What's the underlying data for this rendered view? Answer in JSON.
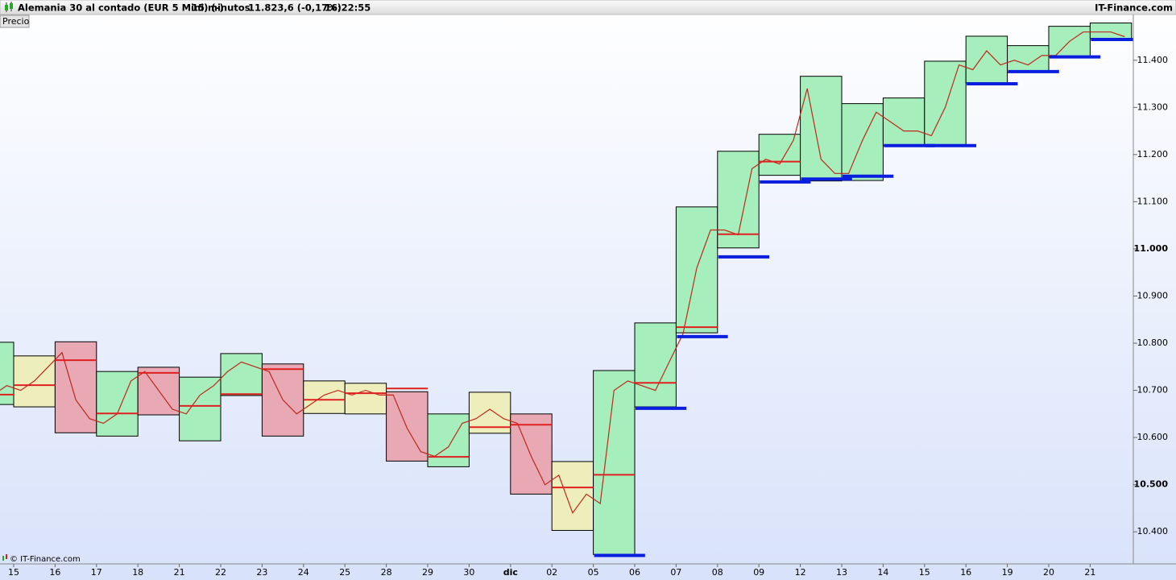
{
  "header": {
    "instrument": "Alemania 30 al contado (EUR 5 Mini) (-)",
    "interval": "15 minutos",
    "quote": "11.823,6 (-0,17%)",
    "time": "16:22:55",
    "brand": "IT-Finance.com"
  },
  "chart_data": {
    "type": "range",
    "y_label": "Precio",
    "credit": "© IT-Finance.com",
    "categories": [
      null,
      "15",
      "16",
      "17",
      "18",
      "21",
      "22",
      "23",
      "24",
      "25",
      "28",
      "29",
      "30",
      "dic",
      "02",
      "05",
      "06",
      "07",
      "08",
      "09",
      "12",
      "13",
      "14",
      "15",
      "16",
      "19",
      "20",
      "21"
    ],
    "high": [
      10802,
      10773,
      10803,
      10740,
      10749,
      10728,
      10778,
      10756,
      10720,
      10715,
      10697,
      10650,
      10696,
      10650,
      10549,
      10742,
      10843,
      11089,
      11207,
      11243,
      11366,
      11308,
      11320,
      11398,
      11451,
      11431,
      11472,
      11479
    ],
    "low": [
      10670,
      10665,
      10610,
      10603,
      10648,
      10593,
      10689,
      10603,
      10651,
      10650,
      10550,
      10538,
      10609,
      10480,
      10403,
      10352,
      10665,
      10822,
      11002,
      11156,
      11144,
      11145,
      11219,
      11219,
      11352,
      11374,
      11407,
      11446
    ],
    "level": [
      10691,
      10711,
      10764,
      10651,
      10737,
      10667,
      10692,
      10745,
      10680,
      10694,
      10704,
      10559,
      10622,
      10627,
      10494,
      10521,
      10716,
      10834,
      11031,
      11185,
      null,
      null,
      null,
      null,
      null,
      null,
      null,
      null
    ],
    "support": [
      null,
      null,
      null,
      null,
      null,
      null,
      null,
      null,
      null,
      null,
      null,
      null,
      null,
      null,
      null,
      10350,
      10662,
      10814,
      10983,
      11142,
      11148,
      11154,
      11219,
      11219,
      11350,
      11376,
      11407,
      11444
    ],
    "box_colors": [
      "#a6eebb",
      "#eeeebc",
      "#e8a8b4",
      "#a6eebb",
      "#e8a8b4",
      "#a6eebb",
      "#a6eebb",
      "#e8a8b4",
      "#eeeebc",
      "#eeeebc",
      "#e8a8b4",
      "#a6eebb",
      "#eeeebc",
      "#e8a8b4",
      "#eeeebc",
      "#a6eebb",
      "#a6eebb",
      "#a6eebb",
      "#a6eebb",
      "#a6eebb",
      "#a6eebb",
      "#a6eebb",
      "#a6eebb",
      "#a6eebb",
      "#a6eebb",
      "#a6eebb",
      "#a6eebb",
      "#a6eebb"
    ],
    "level_color": "#e02020",
    "support_color": "#0a1ee0",
    "price_color": "#c0281c",
    "price": [
      10700,
      10690,
      10710,
      10700,
      10720,
      10750,
      10780,
      10680,
      10640,
      10630,
      10650,
      10720,
      10740,
      10700,
      10660,
      10650,
      10690,
      10710,
      10740,
      10760,
      10750,
      10740,
      10680,
      10650,
      10670,
      10690,
      10700,
      10690,
      10700,
      10690,
      10690,
      10620,
      10570,
      10560,
      10580,
      10630,
      10640,
      10660,
      10640,
      10630,
      10560,
      10500,
      10520,
      10440,
      10480,
      10460,
      10700,
      10720,
      10710,
      10700,
      10760,
      10820,
      10960,
      11040,
      11040,
      11030,
      11170,
      11190,
      11180,
      11230,
      11340,
      11190,
      11160,
      11160,
      11230,
      11290,
      11270,
      11250,
      11250,
      11240,
      11300,
      11390,
      11380,
      11420,
      11390,
      11400,
      11390,
      11410,
      11410,
      11440,
      11460,
      11460,
      11460,
      11450
    ],
    "ylim": [
      10332,
      11497
    ],
    "yticks": [
      {
        "value": 10400,
        "label": "10.400"
      },
      {
        "value": 10500,
        "label": "10.500",
        "bold": true
      },
      {
        "value": 10600,
        "label": "10.600"
      },
      {
        "value": 10700,
        "label": "10.700"
      },
      {
        "value": 10800,
        "label": "10.800"
      },
      {
        "value": 10900,
        "label": "10.900"
      },
      {
        "value": 11000,
        "label": "11.000",
        "bold": true
      },
      {
        "value": 11100,
        "label": "11.100"
      },
      {
        "value": 11200,
        "label": "11.200"
      },
      {
        "value": 11300,
        "label": "11.300"
      },
      {
        "value": 11400,
        "label": "11.400"
      }
    ]
  }
}
